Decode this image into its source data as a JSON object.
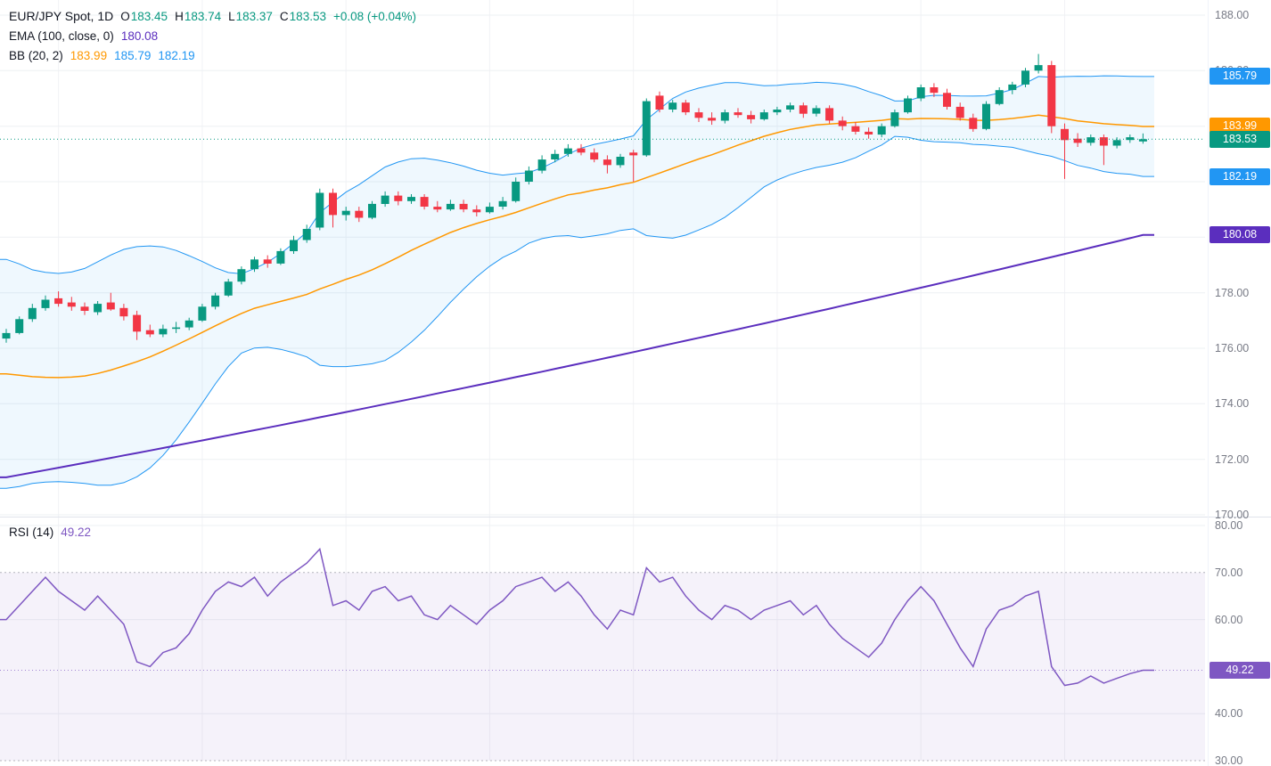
{
  "legend": {
    "title": "EUR/JPY Spot, 1D",
    "ohlc": [
      {
        "label": "O",
        "value": "183.45"
      },
      {
        "label": "H",
        "value": "183.74"
      },
      {
        "label": "L",
        "value": "183.37"
      },
      {
        "label": "C",
        "value": "183.53"
      }
    ],
    "change": "+0.08 (+0.04%)",
    "ema": {
      "name": "EMA (100, close, 0)",
      "value": "180.08"
    },
    "bb": {
      "name": "BB (20, 2)",
      "basis": "183.99",
      "upper": "185.79",
      "lower": "182.19"
    }
  },
  "rsi_legend": {
    "name": "RSI (14)",
    "value": "49.22"
  },
  "colors": {
    "up": "#089981",
    "down": "#F23645",
    "bb_band": "#2196F3",
    "bb_fill": "rgba(33,150,243,0.07)",
    "bb_basis": "#FF9800",
    "ema": "#5B2EBE",
    "rsi": "#7E57C2",
    "rsi_fill": "rgba(126,87,194,0.08)",
    "band_dash": "#9598A1",
    "axis_text": "#787B86",
    "grid": "#EEF0F3",
    "divider": "#E0E3EB",
    "text": "#131722"
  },
  "axis_badges": [
    {
      "text": "185.79",
      "value": 185.79,
      "pane": "main",
      "color": "bb_band"
    },
    {
      "text": "183.99",
      "value": 183.99,
      "pane": "main",
      "color": "bb_basis"
    },
    {
      "text": "183.53",
      "value": 183.53,
      "pane": "main",
      "color": "up"
    },
    {
      "text": "182.19",
      "value": 182.19,
      "pane": "main",
      "color": "bb_band"
    },
    {
      "text": "180.08",
      "value": 180.08,
      "pane": "main",
      "color": "ema"
    },
    {
      "text": "49.22",
      "value": 49.22,
      "pane": "rsi",
      "color": "rsi"
    }
  ],
  "chart_data": {
    "type": "candlestick",
    "title": "EUR/JPY Spot, 1D",
    "main_pane": {
      "ylim": [
        169.8,
        188.5
      ],
      "yticks": [
        {
          "v": 188,
          "label": "188.00"
        },
        {
          "v": 186,
          "label": "186.00"
        },
        {
          "v": 184,
          "label": "184.00"
        },
        {
          "v": 182,
          "label": "182.00"
        },
        {
          "v": 180,
          "label": "180.00"
        },
        {
          "v": 178,
          "label": "178.00"
        },
        {
          "v": 176,
          "label": "176.00"
        },
        {
          "v": 174,
          "label": "174.00"
        },
        {
          "v": 172,
          "label": "172.00"
        },
        {
          "v": 170,
          "label": "170.00"
        }
      ],
      "last_price": 183.53,
      "ema100": {
        "first": 171.35,
        "control": 175.1,
        "last": 180.08
      },
      "bollinger": {
        "period": 20,
        "mult": 2,
        "basis_last": 183.99,
        "upper_last": 185.79,
        "lower_last": 182.19
      },
      "candles": [
        [
          176.35,
          176.7,
          176.2,
          176.55
        ],
        [
          176.55,
          177.15,
          176.5,
          177.05
        ],
        [
          177.05,
          177.6,
          176.95,
          177.45
        ],
        [
          177.45,
          177.9,
          177.35,
          177.75
        ],
        [
          177.8,
          178.05,
          177.5,
          177.6
        ],
        [
          177.65,
          177.85,
          177.35,
          177.5
        ],
        [
          177.5,
          177.65,
          177.2,
          177.35
        ],
        [
          177.3,
          177.7,
          177.2,
          177.6
        ],
        [
          177.65,
          178.0,
          177.35,
          177.4
        ],
        [
          177.45,
          177.6,
          177.0,
          177.15
        ],
        [
          177.2,
          177.35,
          176.3,
          176.6
        ],
        [
          176.65,
          176.85,
          176.4,
          176.5
        ],
        [
          176.5,
          176.85,
          176.4,
          176.7
        ],
        [
          176.7,
          176.95,
          176.55,
          176.75
        ],
        [
          176.75,
          177.1,
          176.65,
          177.0
        ],
        [
          177.0,
          177.6,
          176.95,
          177.5
        ],
        [
          177.5,
          178.0,
          177.4,
          177.9
        ],
        [
          177.9,
          178.5,
          177.85,
          178.4
        ],
        [
          178.4,
          178.95,
          178.3,
          178.85
        ],
        [
          178.85,
          179.3,
          178.75,
          179.2
        ],
        [
          179.2,
          179.35,
          178.9,
          179.05
        ],
        [
          179.05,
          179.6,
          179.0,
          179.5
        ],
        [
          179.5,
          180.05,
          179.4,
          179.9
        ],
        [
          179.9,
          180.45,
          179.8,
          180.3
        ],
        [
          180.35,
          181.75,
          180.25,
          181.6
        ],
        [
          181.6,
          181.75,
          180.35,
          180.8
        ],
        [
          180.8,
          181.1,
          180.6,
          180.95
        ],
        [
          180.95,
          181.1,
          180.55,
          180.7
        ],
        [
          180.7,
          181.3,
          180.65,
          181.2
        ],
        [
          181.2,
          181.65,
          181.1,
          181.5
        ],
        [
          181.5,
          181.65,
          181.15,
          181.3
        ],
        [
          181.3,
          181.55,
          181.2,
          181.45
        ],
        [
          181.45,
          181.55,
          181.0,
          181.1
        ],
        [
          181.1,
          181.3,
          180.9,
          181.0
        ],
        [
          181.0,
          181.35,
          180.95,
          181.2
        ],
        [
          181.2,
          181.35,
          180.9,
          181.0
        ],
        [
          181.0,
          181.15,
          180.75,
          180.9
        ],
        [
          180.9,
          181.25,
          180.85,
          181.1
        ],
        [
          181.1,
          181.45,
          181.0,
          181.3
        ],
        [
          181.3,
          182.15,
          181.25,
          182.0
        ],
        [
          182.0,
          182.55,
          181.9,
          182.4
        ],
        [
          182.4,
          182.95,
          182.3,
          182.8
        ],
        [
          182.8,
          183.15,
          182.7,
          183.0
        ],
        [
          183.0,
          183.35,
          182.9,
          183.2
        ],
        [
          183.2,
          183.35,
          182.95,
          183.05
        ],
        [
          183.05,
          183.2,
          182.7,
          182.8
        ],
        [
          182.8,
          182.95,
          182.3,
          182.6
        ],
        [
          182.6,
          183.0,
          182.5,
          182.9
        ],
        [
          183.05,
          183.15,
          182.0,
          182.95
        ],
        [
          182.95,
          185.0,
          182.9,
          184.9
        ],
        [
          185.1,
          185.25,
          184.5,
          184.6
        ],
        [
          184.6,
          184.95,
          184.5,
          184.85
        ],
        [
          184.85,
          184.95,
          184.4,
          184.5
        ],
        [
          184.5,
          184.65,
          184.15,
          184.3
        ],
        [
          184.3,
          184.5,
          184.05,
          184.2
        ],
        [
          184.2,
          184.6,
          184.1,
          184.5
        ],
        [
          184.5,
          184.65,
          184.3,
          184.4
        ],
        [
          184.4,
          184.55,
          184.1,
          184.25
        ],
        [
          184.25,
          184.6,
          184.2,
          184.5
        ],
        [
          184.5,
          184.7,
          184.4,
          184.6
        ],
        [
          184.6,
          184.85,
          184.5,
          184.75
        ],
        [
          184.75,
          184.85,
          184.3,
          184.45
        ],
        [
          184.45,
          184.75,
          184.35,
          184.65
        ],
        [
          184.65,
          184.75,
          184.1,
          184.2
        ],
        [
          184.2,
          184.35,
          183.85,
          184.0
        ],
        [
          184.0,
          184.15,
          183.7,
          183.8
        ],
        [
          183.8,
          183.95,
          183.55,
          183.7
        ],
        [
          183.7,
          184.1,
          183.6,
          184.0
        ],
        [
          184.0,
          184.6,
          183.95,
          184.5
        ],
        [
          184.5,
          185.1,
          184.45,
          185.0
        ],
        [
          185.0,
          185.5,
          184.9,
          185.4
        ],
        [
          185.4,
          185.55,
          185.05,
          185.2
        ],
        [
          185.2,
          185.35,
          184.6,
          184.7
        ],
        [
          184.7,
          184.85,
          184.2,
          184.3
        ],
        [
          184.3,
          184.45,
          183.8,
          183.9
        ],
        [
          183.9,
          184.9,
          183.85,
          184.8
        ],
        [
          184.8,
          185.4,
          184.75,
          185.3
        ],
        [
          185.3,
          185.6,
          185.15,
          185.5
        ],
        [
          185.5,
          186.1,
          185.4,
          186.0
        ],
        [
          186.0,
          186.6,
          185.9,
          186.2
        ],
        [
          186.2,
          186.35,
          183.75,
          184.0
        ],
        [
          183.9,
          184.1,
          182.1,
          183.5
        ],
        [
          183.55,
          183.75,
          183.25,
          183.4
        ],
        [
          183.4,
          183.7,
          183.3,
          183.6
        ],
        [
          183.6,
          183.7,
          182.6,
          183.3
        ],
        [
          183.3,
          183.6,
          183.2,
          183.5
        ],
        [
          183.5,
          183.7,
          183.4,
          183.6
        ],
        [
          183.45,
          183.74,
          183.37,
          183.53
        ]
      ]
    },
    "rsi_pane": {
      "period": 14,
      "ylim": [
        28,
        82
      ],
      "yticks": [
        {
          "v": 80,
          "label": "80.00"
        },
        {
          "v": 70,
          "label": "70.00"
        },
        {
          "v": 60,
          "label": "60.00"
        },
        {
          "v": 50,
          "label": "50.00"
        },
        {
          "v": 40,
          "label": "40.00"
        },
        {
          "v": 30,
          "label": "30.00"
        }
      ],
      "upper_band": 70,
      "lower_band": 30,
      "last": 49.22,
      "values": [
        60,
        63,
        66,
        69,
        66,
        64,
        62,
        65,
        62,
        59,
        51,
        50,
        53,
        54,
        57,
        62,
        66,
        68,
        67,
        69,
        65,
        68,
        70,
        72,
        75,
        63,
        64,
        62,
        66,
        67,
        64,
        65,
        61,
        60,
        63,
        61,
        59,
        62,
        64,
        67,
        68,
        69,
        66,
        68,
        65,
        61,
        58,
        62,
        61,
        71,
        68,
        69,
        65,
        62,
        60,
        63,
        62,
        60,
        62,
        63,
        64,
        61,
        63,
        59,
        56,
        54,
        52,
        55,
        60,
        64,
        67,
        64,
        59,
        54,
        50,
        58,
        62,
        63,
        65,
        66,
        50,
        46,
        46.5,
        48,
        46.5,
        47.5,
        48.5,
        49.22
      ]
    }
  }
}
